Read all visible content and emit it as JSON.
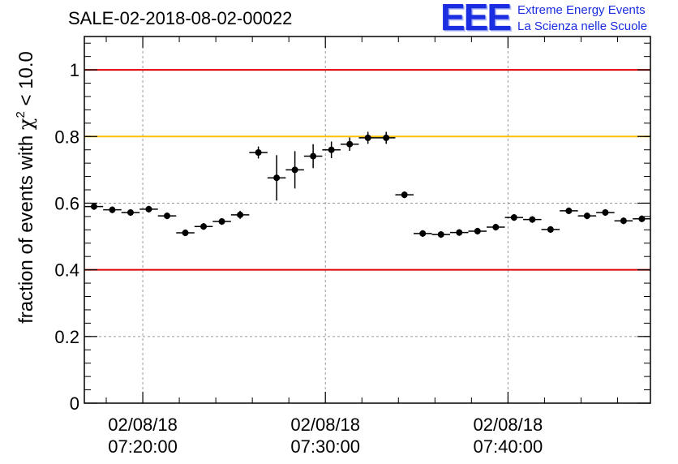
{
  "title": "SALE-02-2018-08-02-00022",
  "logo": {
    "mark": "EEE",
    "line1": "Extreme Energy Events",
    "line2": "La Scienza nelle Scuole"
  },
  "chart_data": {
    "type": "scatter",
    "title": "SALE-02-2018-08-02-00022",
    "ylabel": {
      "prefix": "fraction of events with ",
      "symbol": "χ",
      "superscript": "2",
      "suffix": " < 10.0"
    },
    "xlabel": "",
    "ylim": [
      0,
      1.1
    ],
    "xlim_minutes": [
      16.8,
      47.8
    ],
    "grid": true,
    "yticks": [
      {
        "value": 0,
        "label": "0"
      },
      {
        "value": 0.2,
        "label": "0.2"
      },
      {
        "value": 0.4,
        "label": "0.4"
      },
      {
        "value": 0.6,
        "label": "0.6"
      },
      {
        "value": 0.8,
        "label": "0.8"
      },
      {
        "value": 1.0,
        "label": "1"
      }
    ],
    "xticks": [
      {
        "minute": 20,
        "date": "02/08/18",
        "time": "07:20:00"
      },
      {
        "minute": 30,
        "date": "02/08/18",
        "time": "07:30:00"
      },
      {
        "minute": 40,
        "date": "02/08/18",
        "time": "07:40:00"
      }
    ],
    "reference_lines": [
      {
        "y": 1.0,
        "color": "#e00000"
      },
      {
        "y": 0.8,
        "color": "#ffc000"
      },
      {
        "y": 0.4,
        "color": "#e00000"
      }
    ],
    "bin_width_minutes": 1.0,
    "points": [
      {
        "x": "07:17:20",
        "minute": 17.33,
        "y": 0.59,
        "err": 0.01
      },
      {
        "x": "07:18:20",
        "minute": 18.33,
        "y": 0.58,
        "err": 0.01
      },
      {
        "x": "07:19:20",
        "minute": 19.33,
        "y": 0.572,
        "err": 0.01
      },
      {
        "x": "07:20:20",
        "minute": 20.33,
        "y": 0.582,
        "err": 0.01
      },
      {
        "x": "07:21:20",
        "minute": 21.33,
        "y": 0.562,
        "err": 0.01
      },
      {
        "x": "07:22:20",
        "minute": 22.33,
        "y": 0.511,
        "err": 0.01
      },
      {
        "x": "07:23:20",
        "minute": 23.33,
        "y": 0.53,
        "err": 0.01
      },
      {
        "x": "07:24:20",
        "minute": 24.33,
        "y": 0.545,
        "err": 0.01
      },
      {
        "x": "07:25:20",
        "minute": 25.33,
        "y": 0.565,
        "err": 0.012
      },
      {
        "x": "07:26:20",
        "minute": 26.33,
        "y": 0.752,
        "err": 0.018
      },
      {
        "x": "07:27:20",
        "minute": 27.33,
        "y": 0.676,
        "err": 0.068
      },
      {
        "x": "07:28:20",
        "minute": 28.33,
        "y": 0.7,
        "err": 0.056
      },
      {
        "x": "07:29:20",
        "minute": 29.33,
        "y": 0.741,
        "err": 0.036
      },
      {
        "x": "07:30:20",
        "minute": 30.33,
        "y": 0.76,
        "err": 0.025
      },
      {
        "x": "07:31:20",
        "minute": 31.33,
        "y": 0.777,
        "err": 0.02
      },
      {
        "x": "07:32:20",
        "minute": 32.33,
        "y": 0.796,
        "err": 0.018
      },
      {
        "x": "07:33:20",
        "minute": 33.33,
        "y": 0.796,
        "err": 0.018
      },
      {
        "x": "07:34:20",
        "minute": 34.33,
        "y": 0.625,
        "err": 0.01
      },
      {
        "x": "07:35:20",
        "minute": 35.33,
        "y": 0.509,
        "err": 0.01
      },
      {
        "x": "07:36:20",
        "minute": 36.33,
        "y": 0.506,
        "err": 0.01
      },
      {
        "x": "07:37:20",
        "minute": 37.33,
        "y": 0.512,
        "err": 0.01
      },
      {
        "x": "07:38:20",
        "minute": 38.33,
        "y": 0.516,
        "err": 0.01
      },
      {
        "x": "07:39:20",
        "minute": 39.33,
        "y": 0.528,
        "err": 0.01
      },
      {
        "x": "07:40:20",
        "minute": 40.33,
        "y": 0.557,
        "err": 0.01
      },
      {
        "x": "07:41:20",
        "minute": 41.33,
        "y": 0.551,
        "err": 0.01
      },
      {
        "x": "07:42:20",
        "minute": 42.33,
        "y": 0.521,
        "err": 0.01
      },
      {
        "x": "07:43:20",
        "minute": 43.33,
        "y": 0.577,
        "err": 0.01
      },
      {
        "x": "07:44:20",
        "minute": 44.33,
        "y": 0.562,
        "err": 0.01
      },
      {
        "x": "07:45:20",
        "minute": 45.33,
        "y": 0.572,
        "err": 0.01
      },
      {
        "x": "07:46:20",
        "minute": 46.33,
        "y": 0.547,
        "err": 0.01
      },
      {
        "x": "07:47:20",
        "minute": 47.33,
        "y": 0.553,
        "err": 0.01
      }
    ]
  }
}
